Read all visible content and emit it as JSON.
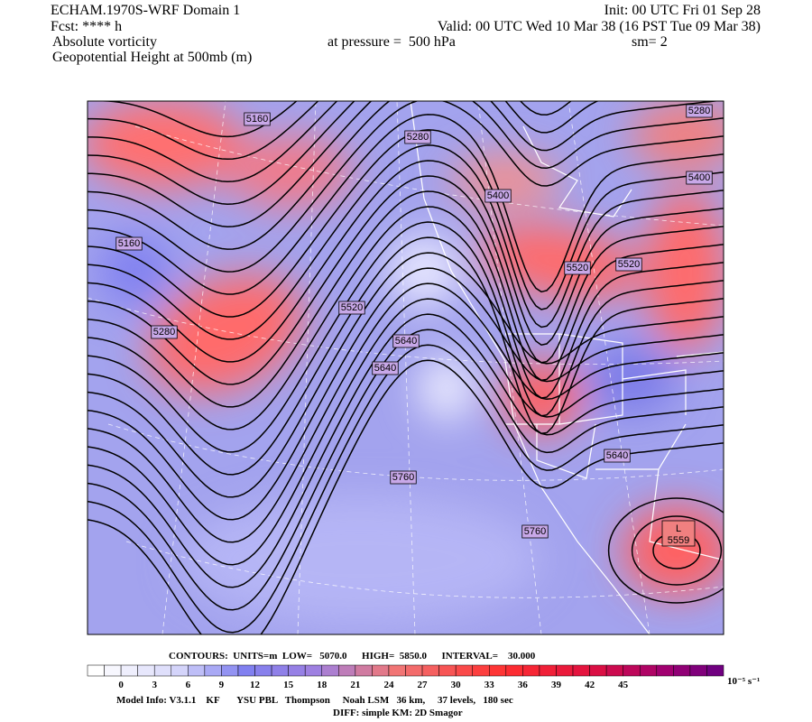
{
  "header": {
    "title": "ECHAM.1970S-WRF Domain 1",
    "init": "Init: 00 UTC Fri 01 Sep 28",
    "forecast": "Fcst: **** h",
    "valid": "Valid: 00 UTC Wed 10 Mar 38 (16 PST Tue 09 Mar 38)",
    "field": "Absolute vorticity",
    "pressure": "at pressure =  500 hPa",
    "smoothing": "sm= 2",
    "contour_field": "Geopotential Height at 500mb (m)"
  },
  "map": {
    "contour_labels": [
      "5160",
      "5280",
      "5280",
      "5400",
      "5400",
      "5160",
      "5520",
      "5520",
      "5520",
      "5280",
      "5640",
      "5640",
      "5640",
      "5760",
      "5760"
    ],
    "low_marker": "L",
    "low_value": "5559"
  },
  "footer": {
    "contours": "CONTOURS:  UNITS=m  LOW=   5070.0      HIGH=  5850.0      INTERVAL=    30.000",
    "colorbar": {
      "ticks": [
        "0",
        "3",
        "6",
        "9",
        "12",
        "15",
        "18",
        "21",
        "24",
        "27",
        "30",
        "33",
        "36",
        "39",
        "42",
        "45"
      ],
      "unit": "10⁻⁵ s⁻¹"
    },
    "model_info": "Model Info: V3.1.1    KF       YSU PBL   Thompson     Noah LSM   36 km,     37 levels,   180 sec",
    "diff": "DIFF: simple KM: 2D Smagor"
  }
}
